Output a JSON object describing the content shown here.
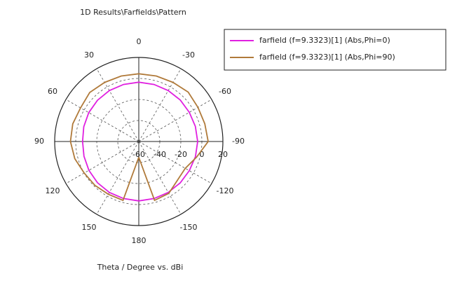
{
  "chart_data": {
    "type": "polar",
    "title": "1D Results\\Farfields\\Pattern",
    "xlabel": "Theta / Degree vs. dBi",
    "x": [
      -180,
      -165,
      -150,
      -135,
      -120,
      -105,
      -90,
      -75,
      -60,
      -45,
      -30,
      -15,
      0,
      15,
      30,
      45,
      60,
      75,
      90,
      105,
      120,
      135,
      150,
      165,
      180
    ],
    "series": [
      {
        "name": "farfield (f=9.3323)[1] (Abs,Phi=0)",
        "color": "#e020e0",
        "values": [
          -3.5,
          -3.8,
          -4,
          -4.3,
          -4.5,
          -4.2,
          -4,
          -4.3,
          -4.5,
          -4.2,
          -4,
          -3.8,
          -3.5,
          -3.8,
          -4,
          -4.5,
          -5,
          -5.8,
          -6.5,
          -6,
          -5.2,
          -4.5,
          -4,
          -3.8,
          -3.5
        ]
      },
      {
        "name": "farfield (f=9.3323)[1] (Abs,Phi=90)",
        "color": "#b07a3a",
        "values": [
          -45,
          -2,
          -3,
          -8,
          -9,
          -3,
          6,
          5,
          5,
          6.5,
          5,
          4.5,
          4.5,
          4.5,
          5,
          6,
          4,
          5,
          5,
          3,
          0,
          -1,
          -2,
          -2,
          -45
        ]
      }
    ],
    "xticks": [
      0,
      30,
      60,
      90,
      120,
      150,
      180,
      -150,
      -120,
      -90,
      -60,
      -30
    ],
    "rlim": [
      -60,
      20
    ],
    "rticks": [
      -60,
      -40,
      -20,
      0,
      20
    ],
    "grid": true
  }
}
